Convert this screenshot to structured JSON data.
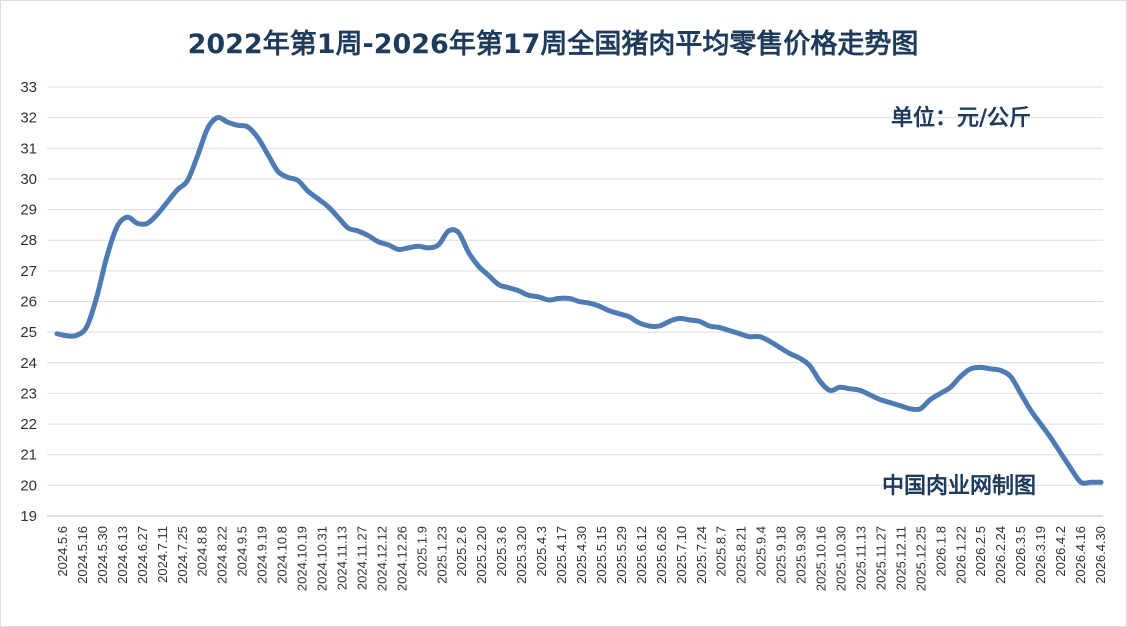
{
  "chart_data": {
    "type": "line",
    "title": "2022年第1周-2026年第17周全国猪肉平均零售价格走势图",
    "unit_label": "单位：元/公斤",
    "source_label": "中国肉业网制图",
    "ylim": [
      19,
      33
    ],
    "yticks": [
      19,
      20,
      21,
      22,
      23,
      24,
      25,
      26,
      27,
      28,
      29,
      30,
      31,
      32,
      33
    ],
    "grid": true,
    "legend": "none",
    "line_color": "#4f7bb3",
    "x_tick_labels": [
      "2024.5.6",
      "2024.5.16",
      "2024.5.30",
      "2024.6.13",
      "2024.6.27",
      "2024.7.11",
      "2024.7.25",
      "2024.8.8",
      "2024.8.22",
      "2024.9.5",
      "2024.9.19",
      "2024.10.8",
      "2024.10.19",
      "2024.10.31",
      "2024.11.13",
      "2024.11.27",
      "2024.12.12",
      "2024.12.26",
      "2025.1.9",
      "2025.1.23",
      "2025.2.6",
      "2025.2.20",
      "2025.3.6",
      "2025.3.20",
      "2025.4.3",
      "2025.4.17",
      "2025.4.30",
      "2025.5.15",
      "2025.5.29",
      "2025.6.12",
      "2025.6.26",
      "2025.7.10",
      "2025.7.24",
      "2025.8.7",
      "2025.8.21",
      "2025.9.4",
      "2025.9.18",
      "2025.9.30",
      "2025.10.16",
      "2025.10.30",
      "2025.11.13",
      "2025.11.27",
      "2025.12.11",
      "2025.12.25",
      "2026.1.8",
      "2026.1.22",
      "2026.2.5",
      "2026.2.24",
      "2026.3.5",
      "2026.3.19",
      "2026.4.2",
      "2026.4.16",
      "2026.4.30"
    ],
    "values": [
      24.95,
      24.88,
      24.9,
      25.2,
      26.2,
      27.5,
      28.45,
      28.75,
      28.55,
      28.55,
      28.85,
      29.25,
      29.65,
      29.95,
      30.75,
      31.65,
      32.0,
      31.85,
      31.75,
      31.7,
      31.35,
      30.8,
      30.25,
      30.05,
      29.95,
      29.6,
      29.35,
      29.1,
      28.75,
      28.4,
      28.3,
      28.15,
      27.95,
      27.85,
      27.7,
      27.75,
      27.8,
      27.75,
      27.85,
      28.3,
      28.25,
      27.6,
      27.15,
      26.85,
      26.55,
      26.45,
      26.35,
      26.2,
      26.15,
      26.05,
      26.1,
      26.1,
      26.0,
      25.95,
      25.85,
      25.7,
      25.6,
      25.5,
      25.3,
      25.2,
      25.2,
      25.35,
      25.45,
      25.4,
      25.35,
      25.2,
      25.15,
      25.05,
      24.95,
      24.85,
      24.85,
      24.7,
      24.5,
      24.3,
      24.15,
      23.9,
      23.4,
      23.1,
      23.2,
      23.15,
      23.1,
      22.95,
      22.8,
      22.7,
      22.6,
      22.5,
      22.5,
      22.8,
      23.0,
      23.2,
      23.55,
      23.8,
      23.85,
      23.8,
      23.75,
      23.55,
      23.0,
      22.45,
      22.0,
      21.55,
      21.05,
      20.55,
      20.1,
      20.1,
      20.1
    ]
  }
}
